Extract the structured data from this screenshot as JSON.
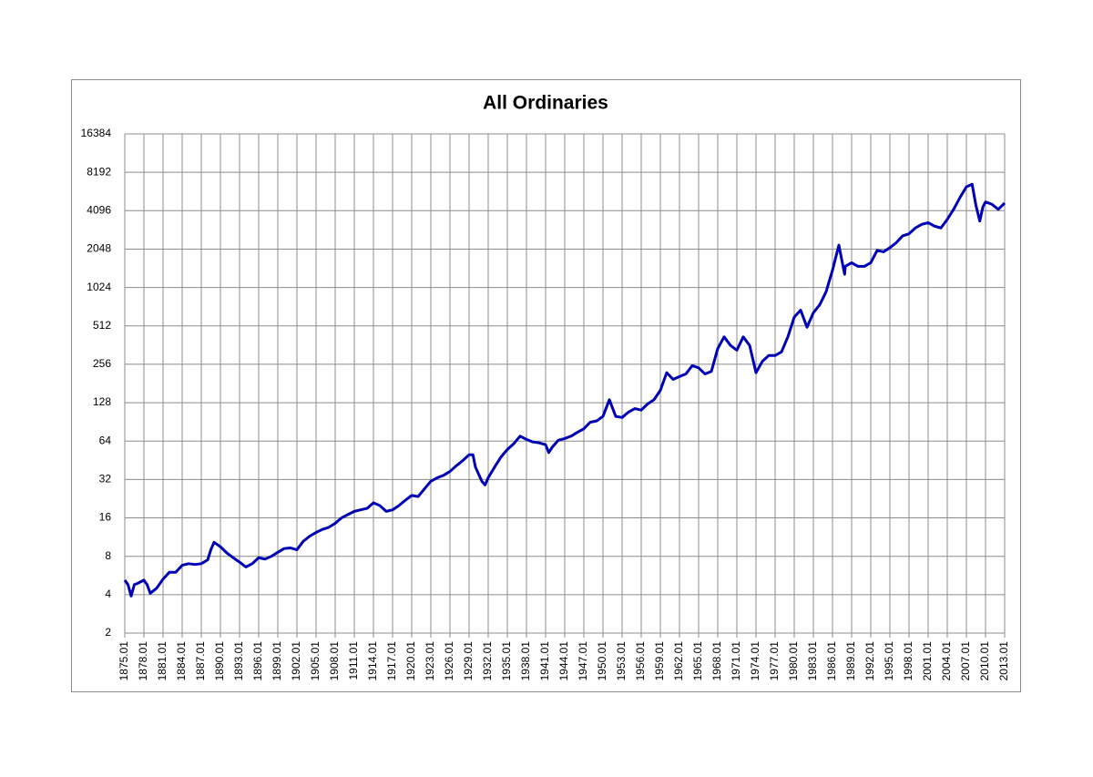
{
  "chart_data": {
    "type": "line",
    "title": "All Ordinaries",
    "yscale": "log",
    "log_base": 2,
    "grid": true,
    "color": "#0000b4",
    "x": [
      1875.0,
      1875.5,
      1876.0,
      1876.5,
      1877.0,
      1878.0,
      1878.5,
      1879.0,
      1880.0,
      1881.0,
      1882.0,
      1883.0,
      1884.0,
      1885.0,
      1886.0,
      1887.0,
      1888.0,
      1888.5,
      1889.0,
      1890.0,
      1891.0,
      1892.0,
      1893.0,
      1894.0,
      1895.0,
      1896.0,
      1897.0,
      1898.0,
      1899.0,
      1900.0,
      1901.0,
      1902.0,
      1903.0,
      1904.0,
      1905.0,
      1906.0,
      1907.0,
      1908.0,
      1909.0,
      1910.0,
      1911.0,
      1912.0,
      1913.0,
      1914.0,
      1915.0,
      1916.0,
      1917.0,
      1918.0,
      1919.0,
      1920.0,
      1921.0,
      1922.0,
      1923.0,
      1924.0,
      1925.0,
      1926.0,
      1927.0,
      1928.0,
      1929.0,
      1929.6,
      1930.0,
      1931.0,
      1931.5,
      1932.0,
      1933.0,
      1934.0,
      1935.0,
      1936.0,
      1937.0,
      1938.0,
      1939.0,
      1940.0,
      1941.0,
      1941.5,
      1942.0,
      1943.0,
      1944.0,
      1945.0,
      1946.0,
      1947.0,
      1948.0,
      1949.0,
      1950.0,
      1951.0,
      1952.0,
      1953.0,
      1954.0,
      1955.0,
      1956.0,
      1957.0,
      1958.0,
      1959.0,
      1960.0,
      1961.0,
      1962.0,
      1963.0,
      1964.0,
      1965.0,
      1966.0,
      1967.0,
      1968.0,
      1969.0,
      1970.0,
      1971.0,
      1972.0,
      1973.0,
      1974.0,
      1975.0,
      1976.0,
      1977.0,
      1978.0,
      1979.0,
      1980.0,
      1981.0,
      1982.0,
      1983.0,
      1984.0,
      1985.0,
      1986.0,
      1987.0,
      1987.9,
      1988.0,
      1989.0,
      1990.0,
      1991.0,
      1992.0,
      1993.0,
      1994.0,
      1995.0,
      1996.0,
      1997.0,
      1998.0,
      1999.0,
      2000.0,
      2001.0,
      2002.0,
      2003.0,
      2004.0,
      2005.0,
      2006.0,
      2007.0,
      2007.9,
      2008.5,
      2009.1,
      2009.6,
      2010.0,
      2011.0,
      2012.0,
      2013.0
    ],
    "values": [
      5.2,
      4.8,
      3.9,
      4.8,
      4.9,
      5.2,
      4.8,
      4.1,
      4.5,
      5.3,
      6.0,
      6.0,
      6.8,
      7.0,
      6.9,
      7.0,
      7.5,
      9.0,
      10.3,
      9.5,
      8.5,
      7.8,
      7.2,
      6.6,
      7.0,
      7.8,
      7.6,
      8.0,
      8.6,
      9.2,
      9.3,
      9.0,
      10.5,
      11.5,
      12.3,
      13.0,
      13.5,
      14.5,
      16.0,
      17.0,
      18.0,
      18.5,
      19.0,
      21.0,
      20.0,
      18.0,
      18.5,
      20.0,
      22.0,
      24.0,
      23.5,
      27,
      31,
      33,
      34.5,
      37,
      41,
      45,
      50,
      50,
      40,
      31,
      29,
      33,
      40,
      48,
      55,
      61,
      70,
      66,
      63,
      62,
      60,
      52,
      57,
      65,
      67,
      70,
      75,
      80,
      90,
      92,
      100,
      135,
      100,
      98,
      108,
      115,
      112,
      125,
      135,
      160,
      220,
      195,
      205,
      215,
      250,
      240,
      215,
      225,
      340,
      420,
      360,
      330,
      420,
      360,
      220,
      270,
      300,
      300,
      320,
      420,
      600,
      680,
      500,
      650,
      750,
      950,
      1400,
      2200,
      1300,
      1500,
      1600,
      1500,
      1500,
      1600,
      2000,
      1950,
      2100,
      2300,
      2600,
      2700,
      3000,
      3200,
      3300,
      3100,
      3000,
      3500,
      4200,
      5200,
      6300,
      6600,
      4500,
      3400,
      4400,
      4800,
      4600,
      4200,
      4700
    ],
    "xlim": [
      1875.0,
      2013.0
    ],
    "xticks": [
      {
        "value": 1875,
        "label": "1875.01"
      },
      {
        "value": 1878,
        "label": "1878.01"
      },
      {
        "value": 1881,
        "label": "1881.01"
      },
      {
        "value": 1884,
        "label": "1884.01"
      },
      {
        "value": 1887,
        "label": "1887.01"
      },
      {
        "value": 1890,
        "label": "1890.01"
      },
      {
        "value": 1893,
        "label": "1893.01"
      },
      {
        "value": 1896,
        "label": "1896.01"
      },
      {
        "value": 1899,
        "label": "1899.01"
      },
      {
        "value": 1902,
        "label": "1902.01"
      },
      {
        "value": 1905,
        "label": "1905.01"
      },
      {
        "value": 1908,
        "label": "1908.01"
      },
      {
        "value": 1911,
        "label": "1911.01"
      },
      {
        "value": 1914,
        "label": "1914.01"
      },
      {
        "value": 1917,
        "label": "1917.01"
      },
      {
        "value": 1920,
        "label": "1920.01"
      },
      {
        "value": 1923,
        "label": "1923.01"
      },
      {
        "value": 1926,
        "label": "1926.01"
      },
      {
        "value": 1929,
        "label": "1929.01"
      },
      {
        "value": 1932,
        "label": "1932.01"
      },
      {
        "value": 1935,
        "label": "1935.01"
      },
      {
        "value": 1938,
        "label": "1938.01"
      },
      {
        "value": 1941,
        "label": "1941.01"
      },
      {
        "value": 1944,
        "label": "1944.01"
      },
      {
        "value": 1947,
        "label": "1947.01"
      },
      {
        "value": 1950,
        "label": "1950.01"
      },
      {
        "value": 1953,
        "label": "1953.01"
      },
      {
        "value": 1956,
        "label": "1956.01"
      },
      {
        "value": 1959,
        "label": "1959.01"
      },
      {
        "value": 1962,
        "label": "1962.01"
      },
      {
        "value": 1965,
        "label": "1965.01"
      },
      {
        "value": 1968,
        "label": "1968.01"
      },
      {
        "value": 1971,
        "label": "1971.01"
      },
      {
        "value": 1974,
        "label": "1974.01"
      },
      {
        "value": 1977,
        "label": "1977.01"
      },
      {
        "value": 1980,
        "label": "1980.01"
      },
      {
        "value": 1983,
        "label": "1983.01"
      },
      {
        "value": 1986,
        "label": "1986.01"
      },
      {
        "value": 1989,
        "label": "1989.01"
      },
      {
        "value": 1992,
        "label": "1992.01"
      },
      {
        "value": 1995,
        "label": "1995.01"
      },
      {
        "value": 1998,
        "label": "1998.01"
      },
      {
        "value": 2001,
        "label": "2001.01"
      },
      {
        "value": 2004,
        "label": "2004.01"
      },
      {
        "value": 2007,
        "label": "2007.01"
      },
      {
        "value": 2010,
        "label": "2010.01"
      },
      {
        "value": 2013,
        "label": "2013.01"
      }
    ],
    "ylim": [
      2,
      16384
    ],
    "yticks": [
      2,
      4,
      8,
      16,
      32,
      64,
      128,
      256,
      512,
      1024,
      2048,
      4096,
      8192,
      16384
    ]
  }
}
